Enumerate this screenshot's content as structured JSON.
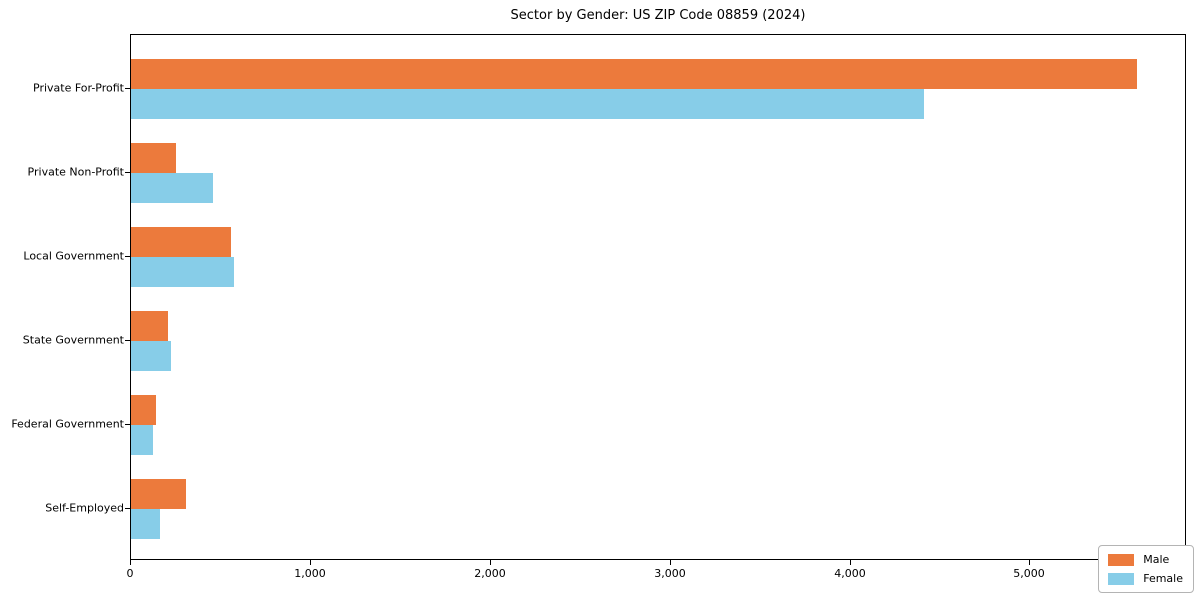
{
  "chart_data": {
    "type": "bar",
    "orientation": "horizontal",
    "title": "Sector by Gender: US ZIP Code 08859 (2024)",
    "xlabel": "",
    "ylabel": "",
    "categories": [
      "Private For-Profit",
      "Private Non-Profit",
      "Local Government",
      "State Government",
      "Federal Government",
      "Self-Employed"
    ],
    "series": [
      {
        "name": "Male",
        "color": "#EC7A3C",
        "values": [
          5590,
          250,
          555,
          205,
          140,
          305
        ]
      },
      {
        "name": "Female",
        "color": "#87CDE8",
        "values": [
          4410,
          455,
          575,
          225,
          125,
          160
        ]
      }
    ],
    "xlim": [
      0,
      5870
    ],
    "xticks": [
      0,
      1000,
      2000,
      3000,
      4000,
      5000
    ],
    "xtick_labels": [
      "0",
      "1,000",
      "2,000",
      "3,000",
      "4,000",
      "5,000"
    ],
    "grid": false,
    "legend_position": "lower right"
  }
}
